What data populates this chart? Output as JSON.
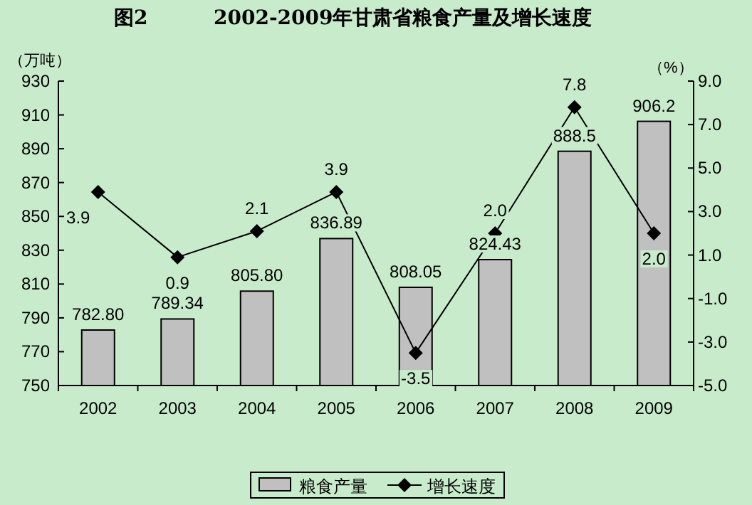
{
  "chart_data": {
    "type": "bar",
    "title": "图2",
    "subtitle": "2002-2009年甘肃省粮食产量及增长速度",
    "ylabel": "（万吨）",
    "y2label": "（%）",
    "categories": [
      "2002",
      "2003",
      "2004",
      "2005",
      "2006",
      "2007",
      "2008",
      "2009"
    ],
    "series": [
      {
        "name": "粮食产量",
        "color": "#c0c0c0",
        "values": [
          782.8,
          789.34,
          805.8,
          836.89,
          808.05,
          824.43,
          888.5,
          906.2
        ],
        "value_labels": [
          "782.80",
          "789.34",
          "805.80",
          "836.89",
          "808.05",
          "824.43",
          "888.5",
          "906.2"
        ]
      },
      {
        "name": "增长速度",
        "type": "line",
        "axis": "y2",
        "color": "#000000",
        "marker": "diamond",
        "values": [
          3.9,
          0.9,
          2.1,
          3.9,
          -3.5,
          2.0,
          7.8,
          2.0
        ],
        "value_labels": [
          "3.9",
          "0.9",
          "2.1",
          "3.9",
          "-3.5",
          "2.0",
          "7.8",
          "2.0"
        ]
      }
    ],
    "ylim": [
      750,
      930
    ],
    "yticks": [
      750,
      770,
      790,
      810,
      830,
      850,
      870,
      890,
      910,
      930
    ],
    "y2lim": [
      -5,
      9
    ],
    "y2ticks": [
      {
        "value": -5,
        "label": "-5.0"
      },
      {
        "value": -3,
        "label": "-3.0"
      },
      {
        "value": -1,
        "label": "-1.0"
      },
      {
        "value": 1,
        "label": "1.0"
      },
      {
        "value": 3,
        "label": "3.0"
      },
      {
        "value": 5,
        "label": "5.0"
      },
      {
        "value": 7,
        "label": "7.0"
      },
      {
        "value": 9,
        "label": "9.0"
      }
    ],
    "legend": "bottom"
  }
}
